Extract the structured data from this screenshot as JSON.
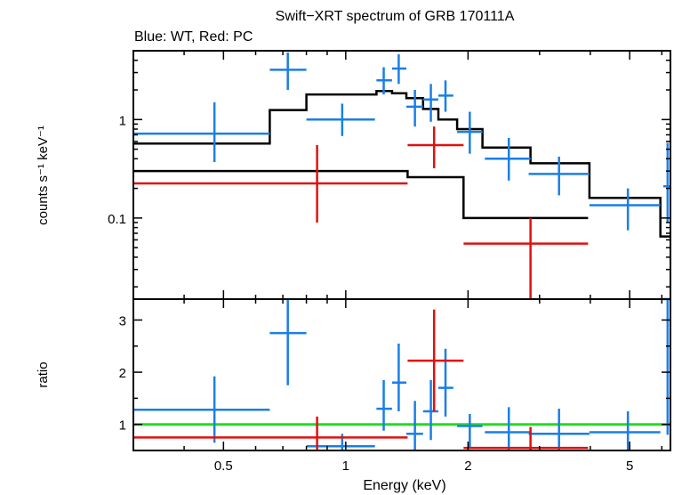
{
  "title": "Swift−XRT spectrum of GRB 170111A",
  "subtitle": "Blue: WT, Red: PC",
  "colors": {
    "wt": "#1a7fe6",
    "pc": "#e01010",
    "model": "#000000",
    "unity": "#22dd22",
    "axis": "#000000"
  },
  "chart_data": [
    {
      "type": "scatter",
      "panel": "spectrum",
      "ylabel": "counts s⁻¹ keV⁻¹",
      "yscale": "log",
      "ylim": [
        0.015,
        5
      ],
      "xscale": "log",
      "xlim": [
        0.3,
        6.3
      ],
      "yticks": [
        {
          "value": 0.1,
          "label": "0.1"
        },
        {
          "value": 1,
          "label": "1"
        }
      ],
      "series": [
        {
          "key": "wt",
          "points": [
            {
              "x": 0.475,
              "xlo": 0.3,
              "xhi": 0.65,
              "y": 0.72,
              "ylo": 0.37,
              "yhi": 1.5
            },
            {
              "x": 0.72,
              "xlo": 0.65,
              "xhi": 0.8,
              "y": 3.2,
              "ylo": 2.0,
              "yhi": 4.8
            },
            {
              "x": 0.98,
              "xlo": 0.8,
              "xhi": 1.18,
              "y": 1.0,
              "ylo": 0.68,
              "yhi": 1.45
            },
            {
              "x": 1.24,
              "xlo": 1.19,
              "xhi": 1.3,
              "y": 2.5,
              "ylo": 1.8,
              "yhi": 3.4
            },
            {
              "x": 1.35,
              "xlo": 1.3,
              "xhi": 1.41,
              "y": 3.3,
              "ylo": 2.3,
              "yhi": 4.6
            },
            {
              "x": 1.48,
              "xlo": 1.41,
              "xhi": 1.55,
              "y": 1.35,
              "ylo": 0.85,
              "yhi": 2.0
            },
            {
              "x": 1.62,
              "xlo": 1.55,
              "xhi": 1.69,
              "y": 1.6,
              "ylo": 0.95,
              "yhi": 2.3
            },
            {
              "x": 1.76,
              "xlo": 1.69,
              "xhi": 1.84,
              "y": 1.75,
              "ylo": 1.2,
              "yhi": 2.5
            },
            {
              "x": 2.02,
              "xlo": 1.88,
              "xhi": 2.17,
              "y": 0.75,
              "ylo": 0.45,
              "yhi": 1.2
            },
            {
              "x": 2.52,
              "xlo": 2.2,
              "xhi": 2.85,
              "y": 0.4,
              "ylo": 0.24,
              "yhi": 0.65
            },
            {
              "x": 3.35,
              "xlo": 2.82,
              "xhi": 3.98,
              "y": 0.28,
              "ylo": 0.17,
              "yhi": 0.42
            },
            {
              "x": 4.95,
              "xlo": 3.98,
              "xhi": 5.95,
              "y": 0.135,
              "ylo": 0.075,
              "yhi": 0.2
            },
            {
              "x": 6.2,
              "xlo": 6.05,
              "xhi": 6.3,
              "y": 0.21,
              "ylo": 0.09,
              "yhi": 0.58
            }
          ]
        },
        {
          "key": "pc",
          "points": [
            {
              "x": 0.85,
              "xlo": 0.3,
              "xhi": 1.42,
              "y": 0.225,
              "ylo": 0.09,
              "yhi": 0.55
            },
            {
              "x": 1.65,
              "xlo": 1.42,
              "xhi": 1.95,
              "y": 0.55,
              "ylo": 0.32,
              "yhi": 0.85
            },
            {
              "x": 2.85,
              "xlo": 1.95,
              "xhi": 3.95,
              "y": 0.055,
              "ylo": 0.015,
              "yhi": 0.1
            }
          ]
        }
      ],
      "model": [
        {
          "key": "wt",
          "x": [
            0.3,
            0.65,
            0.65,
            0.8,
            0.8,
            1.19,
            1.19,
            1.3,
            1.3,
            1.41,
            1.41,
            1.55,
            1.55,
            1.69,
            1.69,
            1.88,
            1.88,
            2.17,
            2.17,
            2.85,
            2.85,
            3.98,
            3.98,
            5.95,
            5.95,
            6.3
          ],
          "y": [
            0.57,
            0.57,
            1.25,
            1.25,
            1.8,
            1.8,
            1.95,
            1.95,
            1.85,
            1.85,
            1.65,
            1.65,
            1.28,
            1.28,
            1.0,
            1.0,
            0.8,
            0.8,
            0.52,
            0.52,
            0.36,
            0.36,
            0.16,
            0.16,
            0.065,
            0.065
          ]
        },
        {
          "key": "pc",
          "x": [
            0.3,
            1.42,
            1.42,
            1.95,
            1.95,
            3.95
          ],
          "y": [
            0.3,
            0.3,
            0.26,
            0.26,
            0.1,
            0.1
          ]
        }
      ]
    },
    {
      "type": "scatter",
      "panel": "ratio",
      "ylabel": "ratio",
      "xlabel": "Energy (keV)",
      "yscale": "linear",
      "ylim": [
        0.5,
        3.4
      ],
      "xscale": "log",
      "xlim": [
        0.3,
        6.3
      ],
      "yticks": [
        {
          "value": 1,
          "label": "1"
        },
        {
          "value": 2,
          "label": "2"
        },
        {
          "value": 3,
          "label": "3"
        }
      ],
      "xticks": [
        {
          "value": 0.5,
          "label": "0.5"
        },
        {
          "value": 1,
          "label": "1"
        },
        {
          "value": 2,
          "label": "2"
        },
        {
          "value": 5,
          "label": "5"
        }
      ],
      "unity": 1,
      "series": [
        {
          "key": "wt",
          "points": [
            {
              "x": 0.475,
              "xlo": 0.3,
              "xhi": 0.65,
              "y": 1.28,
              "ylo": 0.65,
              "yhi": 1.92
            },
            {
              "x": 0.72,
              "xlo": 0.65,
              "xhi": 0.8,
              "y": 2.75,
              "ylo": 1.75,
              "yhi": 3.4
            },
            {
              "x": 0.98,
              "xlo": 0.8,
              "xhi": 1.18,
              "y": 0.58,
              "ylo": 0.5,
              "yhi": 0.82
            },
            {
              "x": 1.24,
              "xlo": 1.19,
              "xhi": 1.3,
              "y": 1.3,
              "ylo": 0.88,
              "yhi": 1.85
            },
            {
              "x": 1.35,
              "xlo": 1.3,
              "xhi": 1.41,
              "y": 1.8,
              "ylo": 1.25,
              "yhi": 2.55
            },
            {
              "x": 1.48,
              "xlo": 1.41,
              "xhi": 1.55,
              "y": 0.82,
              "ylo": 0.5,
              "yhi": 1.45
            },
            {
              "x": 1.62,
              "xlo": 1.55,
              "xhi": 1.69,
              "y": 1.25,
              "ylo": 0.7,
              "yhi": 1.85
            },
            {
              "x": 1.76,
              "xlo": 1.69,
              "xhi": 1.84,
              "y": 1.7,
              "ylo": 1.15,
              "yhi": 2.45
            },
            {
              "x": 2.02,
              "xlo": 1.88,
              "xhi": 2.17,
              "y": 0.97,
              "ylo": 0.55,
              "yhi": 1.2
            },
            {
              "x": 2.52,
              "xlo": 2.2,
              "xhi": 2.85,
              "y": 0.85,
              "ylo": 0.5,
              "yhi": 1.33
            },
            {
              "x": 3.35,
              "xlo": 2.82,
              "xhi": 3.98,
              "y": 0.82,
              "ylo": 0.5,
              "yhi": 1.3
            },
            {
              "x": 4.95,
              "xlo": 3.98,
              "xhi": 5.95,
              "y": 0.85,
              "ylo": 0.5,
              "yhi": 1.25
            },
            {
              "x": 6.2,
              "xlo": 6.05,
              "xhi": 6.3,
              "y": 3.4,
              "ylo": 0.8,
              "yhi": 3.4
            }
          ]
        },
        {
          "key": "pc",
          "points": [
            {
              "x": 0.85,
              "xlo": 0.3,
              "xhi": 1.42,
              "y": 0.75,
              "ylo": 0.5,
              "yhi": 1.15
            },
            {
              "x": 1.65,
              "xlo": 1.42,
              "xhi": 1.95,
              "y": 2.22,
              "ylo": 1.25,
              "yhi": 3.2
            },
            {
              "x": 2.85,
              "xlo": 1.95,
              "xhi": 3.95,
              "y": 0.55,
              "ylo": 0.5,
              "yhi": 0.95
            }
          ]
        }
      ]
    }
  ]
}
